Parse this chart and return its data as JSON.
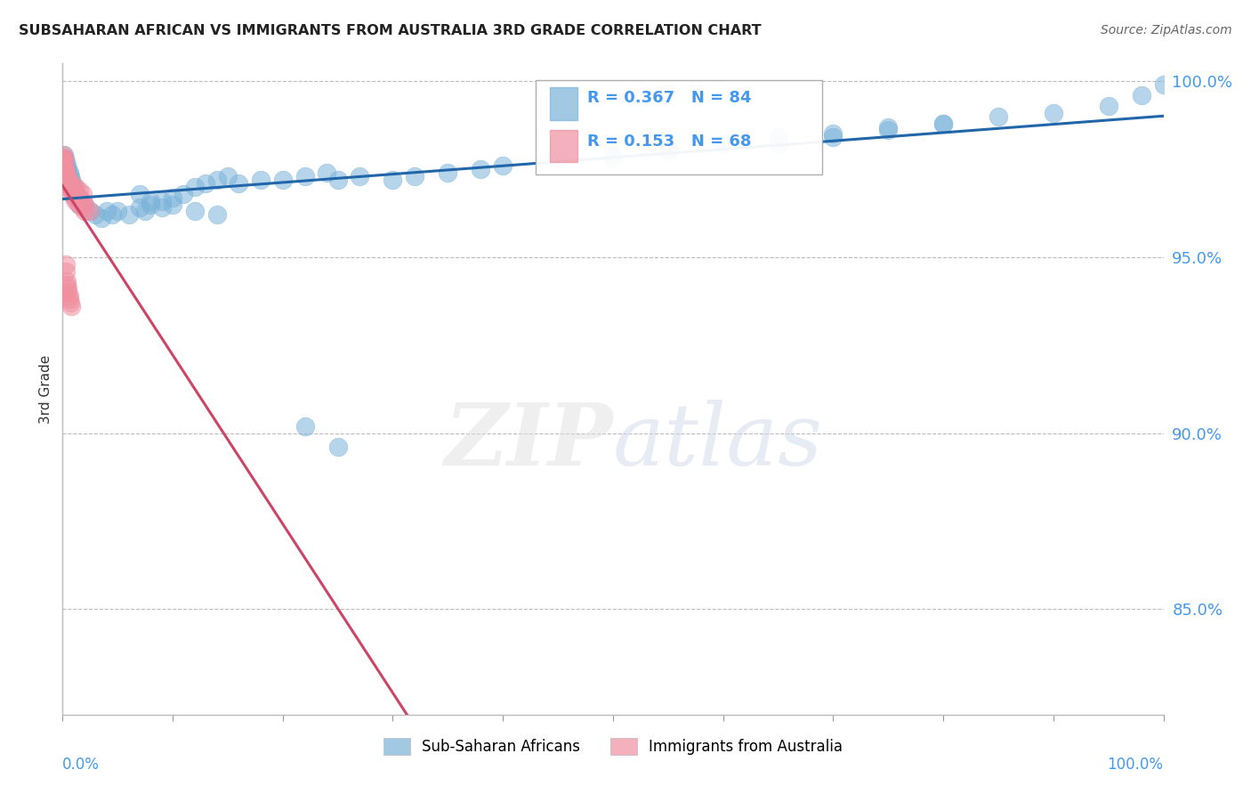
{
  "title": "SUBSAHARAN AFRICAN VS IMMIGRANTS FROM AUSTRALIA 3RD GRADE CORRELATION CHART",
  "source": "Source: ZipAtlas.com",
  "ylabel": "3rd Grade",
  "ylabel_right_ticks": [
    "100.0%",
    "95.0%",
    "90.0%",
    "85.0%"
  ],
  "ylabel_right_values": [
    1.0,
    0.95,
    0.9,
    0.85
  ],
  "legend_blue_r": "R = 0.367",
  "legend_blue_n": "N = 84",
  "legend_pink_r": "R = 0.153",
  "legend_pink_n": "N = 68",
  "legend_blue_label": "Sub-Saharan Africans",
  "legend_pink_label": "Immigrants from Australia",
  "blue_color": "#7ab3d9",
  "pink_color": "#f08fa0",
  "blue_line_color": "#2266aa",
  "pink_line_color": "#cc4466",
  "right_tick_color": "#4499ee",
  "background_color": "#ffffff",
  "xlim": [
    0.0,
    1.0
  ],
  "ylim": [
    0.82,
    1.005
  ],
  "blue_scatter_x": [
    0.001,
    0.001,
    0.001,
    0.001,
    0.002,
    0.002,
    0.002,
    0.002,
    0.003,
    0.003,
    0.003,
    0.003,
    0.004,
    0.004,
    0.005,
    0.005,
    0.006,
    0.006,
    0.007,
    0.007,
    0.008,
    0.008,
    0.009,
    0.01,
    0.01,
    0.015,
    0.015,
    0.02,
    0.025,
    0.03,
    0.035,
    0.04,
    0.045,
    0.05,
    0.06,
    0.07,
    0.075,
    0.08,
    0.09,
    0.1,
    0.11,
    0.12,
    0.13,
    0.14,
    0.15,
    0.16,
    0.18,
    0.2,
    0.22,
    0.24,
    0.25,
    0.27,
    0.3,
    0.32,
    0.35,
    0.38,
    0.4,
    0.45,
    0.5,
    0.55,
    0.6,
    0.65,
    0.7,
    0.75,
    0.8,
    0.85,
    0.9,
    0.95,
    0.98,
    1.0,
    0.22,
    0.25,
    0.07,
    0.08,
    0.09,
    0.1,
    0.12,
    0.14,
    0.5,
    0.55,
    0.65,
    0.7,
    0.75,
    0.8
  ],
  "blue_scatter_y": [
    0.979,
    0.977,
    0.975,
    0.973,
    0.978,
    0.976,
    0.974,
    0.972,
    0.977,
    0.975,
    0.973,
    0.971,
    0.976,
    0.974,
    0.975,
    0.973,
    0.974,
    0.972,
    0.973,
    0.971,
    0.972,
    0.97,
    0.971,
    0.97,
    0.968,
    0.967,
    0.965,
    0.965,
    0.963,
    0.962,
    0.961,
    0.963,
    0.962,
    0.963,
    0.962,
    0.964,
    0.963,
    0.965,
    0.966,
    0.967,
    0.968,
    0.97,
    0.971,
    0.972,
    0.973,
    0.971,
    0.972,
    0.972,
    0.973,
    0.974,
    0.972,
    0.973,
    0.972,
    0.973,
    0.974,
    0.975,
    0.976,
    0.978,
    0.979,
    0.981,
    0.982,
    0.984,
    0.985,
    0.987,
    0.988,
    0.99,
    0.991,
    0.993,
    0.996,
    0.999,
    0.902,
    0.896,
    0.968,
    0.966,
    0.964,
    0.965,
    0.963,
    0.962,
    0.978,
    0.98,
    0.982,
    0.984,
    0.986,
    0.988
  ],
  "pink_scatter_x": [
    0.0003,
    0.0004,
    0.0005,
    0.0006,
    0.0007,
    0.0008,
    0.001,
    0.001,
    0.001,
    0.001,
    0.001,
    0.001,
    0.0012,
    0.0014,
    0.0015,
    0.0016,
    0.0018,
    0.002,
    0.002,
    0.002,
    0.003,
    0.003,
    0.003,
    0.004,
    0.004,
    0.005,
    0.005,
    0.006,
    0.007,
    0.008,
    0.009,
    0.01,
    0.012,
    0.015,
    0.018,
    0.02,
    0.025,
    0.001,
    0.001,
    0.002,
    0.002,
    0.003,
    0.004,
    0.005,
    0.006,
    0.007,
    0.008,
    0.009,
    0.01,
    0.012,
    0.015,
    0.018,
    0.02,
    0.005,
    0.008,
    0.012,
    0.015,
    0.018,
    0.003,
    0.003,
    0.004,
    0.004,
    0.005,
    0.005,
    0.006,
    0.006,
    0.007,
    0.008
  ],
  "pink_scatter_y": [
    0.979,
    0.978,
    0.977,
    0.978,
    0.977,
    0.976,
    0.978,
    0.977,
    0.976,
    0.975,
    0.974,
    0.973,
    0.975,
    0.974,
    0.975,
    0.974,
    0.973,
    0.975,
    0.974,
    0.973,
    0.974,
    0.973,
    0.972,
    0.973,
    0.972,
    0.972,
    0.971,
    0.971,
    0.97,
    0.97,
    0.969,
    0.969,
    0.968,
    0.967,
    0.966,
    0.965,
    0.963,
    0.976,
    0.975,
    0.974,
    0.975,
    0.974,
    0.973,
    0.972,
    0.971,
    0.97,
    0.969,
    0.968,
    0.967,
    0.966,
    0.965,
    0.964,
    0.963,
    0.972,
    0.971,
    0.97,
    0.969,
    0.968,
    0.948,
    0.946,
    0.943,
    0.942,
    0.941,
    0.94,
    0.939,
    0.938,
    0.937,
    0.936
  ]
}
